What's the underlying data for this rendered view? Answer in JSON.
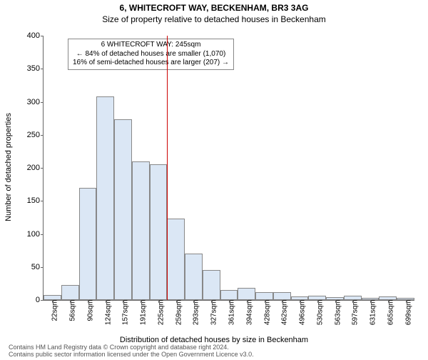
{
  "title": "6, WHITECROFT WAY, BECKENHAM, BR3 3AG",
  "subtitle": "Size of property relative to detached houses in Beckenham",
  "ylabel": "Number of detached properties",
  "xlabel": "Distribution of detached houses by size in Beckenham",
  "chart": {
    "type": "histogram",
    "ylim": [
      0,
      400
    ],
    "ytick_step": 50,
    "bar_color": "#dbe7f5",
    "bar_border_color": "#888888",
    "marker_color": "#cc0000",
    "x_categories": [
      "22sqm",
      "56sqm",
      "90sqm",
      "124sqm",
      "157sqm",
      "191sqm",
      "225sqm",
      "259sqm",
      "293sqm",
      "327sqm",
      "361sqm",
      "394sqm",
      "428sqm",
      "462sqm",
      "496sqm",
      "530sqm",
      "563sqm",
      "597sqm",
      "631sqm",
      "665sqm",
      "699sqm"
    ],
    "values": [
      8,
      23,
      170,
      308,
      273,
      210,
      205,
      123,
      70,
      45,
      15,
      18,
      12,
      12,
      5,
      7,
      4,
      6,
      3,
      5,
      3
    ],
    "marker_index_after": 6
  },
  "annotation": {
    "line1": "6 WHITECROFT WAY: 245sqm",
    "line2": "← 84% of detached houses are smaller (1,070)",
    "line3": "16% of semi-detached houses are larger (207) →"
  },
  "footer": {
    "line1": "Contains HM Land Registry data © Crown copyright and database right 2024.",
    "line2": "Contains public sector information licensed under the Open Government Licence v3.0."
  },
  "fonts": {
    "title_size": 12,
    "axis_label_size": 11,
    "tick_size": 11
  },
  "colors": {
    "background": "#ffffff",
    "axis": "#666666",
    "text": "#000000"
  }
}
